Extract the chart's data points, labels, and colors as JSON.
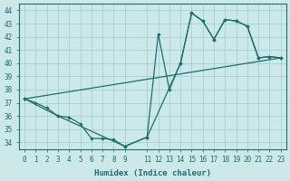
{
  "xlabel": "Humidex (Indice chaleur)",
  "xlim": [
    -0.5,
    23.5
  ],
  "ylim": [
    33.5,
    44.5
  ],
  "xticks": [
    0,
    1,
    2,
    3,
    4,
    5,
    6,
    7,
    8,
    9,
    11,
    12,
    13,
    14,
    15,
    16,
    17,
    18,
    19,
    20,
    21,
    22,
    23
  ],
  "yticks": [
    34,
    35,
    36,
    37,
    38,
    39,
    40,
    41,
    42,
    43,
    44
  ],
  "bg_color": "#cce8e8",
  "grid_color": "#9ecece",
  "line_color": "#1a7070",
  "line1_x": [
    0,
    1,
    2,
    3,
    4,
    5,
    6,
    7,
    8,
    9,
    11,
    12,
    13,
    14,
    15,
    16,
    17,
    18,
    19,
    20,
    21,
    22,
    23
  ],
  "line1_y": [
    37.3,
    37.0,
    36.6,
    36.0,
    35.9,
    35.4,
    34.3,
    34.3,
    34.2,
    33.7,
    34.4,
    42.2,
    38.0,
    40.0,
    43.8,
    43.2,
    41.8,
    43.3,
    43.2,
    42.8,
    40.4,
    40.5,
    40.4
  ],
  "line2_x": [
    0,
    3,
    9,
    11,
    14,
    15,
    16,
    17,
    18,
    19,
    20,
    21,
    22,
    23
  ],
  "line2_y": [
    37.3,
    36.0,
    33.7,
    34.4,
    40.0,
    43.8,
    43.2,
    41.8,
    43.3,
    43.2,
    42.8,
    40.4,
    40.5,
    40.4
  ],
  "line3_x": [
    0,
    23
  ],
  "line3_y": [
    37.3,
    40.4
  ],
  "fontsize_label": 6.5,
  "fontsize_tick": 5.5
}
